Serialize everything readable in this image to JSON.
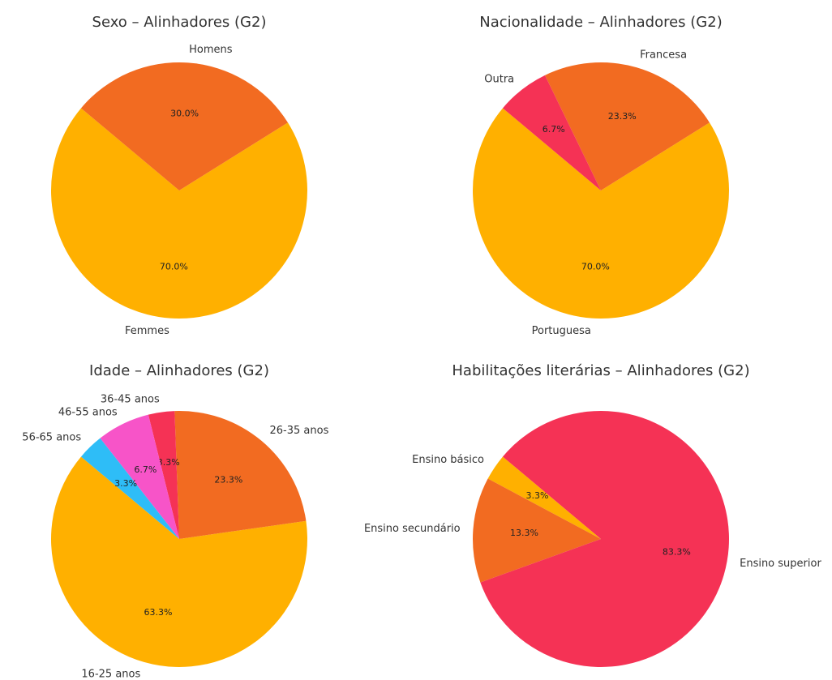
{
  "chart_data": [
    {
      "type": "pie",
      "title": "Sexo – Alinhadores (G2)",
      "startangle": 140,
      "categories": [
        "Femmes",
        "Homens"
      ],
      "values": [
        70.0,
        30.0
      ],
      "value_labels": [
        "70.0%",
        "30.0%"
      ],
      "colors": [
        "#ffb000",
        "#f26b21"
      ]
    },
    {
      "type": "pie",
      "title": "Nacionalidade – Alinhadores (G2)",
      "startangle": 140,
      "categories": [
        "Portuguesa",
        "Francesa",
        "Outra"
      ],
      "values": [
        70.0,
        23.3,
        6.7
      ],
      "value_labels": [
        "70.0%",
        "23.3%",
        "6.7%"
      ],
      "colors": [
        "#ffb000",
        "#f26b21",
        "#f53255"
      ]
    },
    {
      "type": "pie",
      "title": "Idade – Alinhadores (G2)",
      "startangle": 140,
      "categories": [
        "16-25 anos",
        "26-35 anos",
        "36-45 anos",
        "46-55 anos",
        "56-65 anos"
      ],
      "values": [
        63.3,
        23.3,
        3.3,
        6.7,
        3.3
      ],
      "value_labels": [
        "63.3%",
        "23.3%",
        "3.3%",
        "6.7%",
        "3.3%"
      ],
      "colors": [
        "#ffb000",
        "#f26b21",
        "#f53255",
        "#f754c8",
        "#2ebdf7"
      ]
    },
    {
      "type": "pie",
      "title": "Habilitações literárias – Alinhadores (G2)",
      "startangle": 140,
      "categories": [
        "Ensino básico",
        "Ensino secundário",
        "Ensino superior"
      ],
      "values": [
        3.3,
        13.3,
        83.3
      ],
      "value_labels": [
        "3.3%",
        "13.3%",
        "83.3%"
      ],
      "colors": [
        "#ffb000",
        "#f26b21",
        "#f53255"
      ]
    }
  ]
}
